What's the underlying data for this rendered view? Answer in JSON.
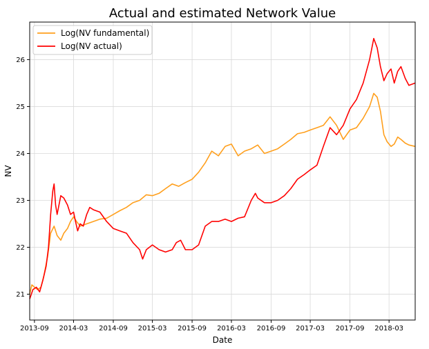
{
  "chart_data": {
    "type": "line",
    "title": "Actual and estimated Network Value",
    "xlabel": "Date",
    "ylabel": "NV",
    "x_ticks": [
      "2013-09",
      "2014-03",
      "2014-09",
      "2015-03",
      "2015-09",
      "2016-03",
      "2016-09",
      "2017-03",
      "2017-09",
      "2018-03"
    ],
    "y_ticks": [
      21,
      22,
      23,
      24,
      25,
      26
    ],
    "xlim": [
      "2013-08-10",
      "2018-06-30"
    ],
    "ylim": [
      20.45,
      26.8
    ],
    "grid": true,
    "legend_position": "top-left",
    "series": [
      {
        "name": "Log(NV fundamental)",
        "color": "#ff9f1c",
        "points": [
          [
            "2013-08-10",
            21.0
          ],
          [
            "2013-08-20",
            21.2
          ],
          [
            "2013-09-01",
            21.15
          ],
          [
            "2013-09-15",
            21.1
          ],
          [
            "2013-10-01",
            21.15
          ],
          [
            "2013-10-15",
            21.4
          ],
          [
            "2013-11-01",
            21.8
          ],
          [
            "2013-11-15",
            22.3
          ],
          [
            "2013-12-01",
            22.45
          ],
          [
            "2013-12-15",
            22.25
          ],
          [
            "2014-01-01",
            22.15
          ],
          [
            "2014-01-15",
            22.3
          ],
          [
            "2014-02-01",
            22.4
          ],
          [
            "2014-02-15",
            22.55
          ],
          [
            "2014-03-01",
            22.65
          ],
          [
            "2014-03-15",
            22.55
          ],
          [
            "2014-04-01",
            22.45
          ],
          [
            "2014-05-01",
            22.5
          ],
          [
            "2014-06-01",
            22.55
          ],
          [
            "2014-07-01",
            22.6
          ],
          [
            "2014-08-01",
            22.62
          ],
          [
            "2014-09-01",
            22.7
          ],
          [
            "2014-10-01",
            22.78
          ],
          [
            "2014-11-01",
            22.85
          ],
          [
            "2014-12-01",
            22.95
          ],
          [
            "2015-01-01",
            23.0
          ],
          [
            "2015-02-01",
            23.12
          ],
          [
            "2015-03-01",
            23.1
          ],
          [
            "2015-04-01",
            23.15
          ],
          [
            "2015-05-01",
            23.25
          ],
          [
            "2015-06-01",
            23.35
          ],
          [
            "2015-07-01",
            23.3
          ],
          [
            "2015-08-01",
            23.38
          ],
          [
            "2015-09-01",
            23.45
          ],
          [
            "2015-10-01",
            23.6
          ],
          [
            "2015-11-01",
            23.8
          ],
          [
            "2015-12-01",
            24.05
          ],
          [
            "2016-01-01",
            23.95
          ],
          [
            "2016-02-01",
            24.15
          ],
          [
            "2016-03-01",
            24.2
          ],
          [
            "2016-04-01",
            23.95
          ],
          [
            "2016-05-01",
            24.05
          ],
          [
            "2016-06-01",
            24.1
          ],
          [
            "2016-07-01",
            24.18
          ],
          [
            "2016-08-01",
            24.0
          ],
          [
            "2016-09-01",
            24.05
          ],
          [
            "2016-10-01",
            24.1
          ],
          [
            "2016-11-01",
            24.2
          ],
          [
            "2016-12-01",
            24.3
          ],
          [
            "2017-01-01",
            24.42
          ],
          [
            "2017-02-01",
            24.45
          ],
          [
            "2017-03-01",
            24.5
          ],
          [
            "2017-04-01",
            24.55
          ],
          [
            "2017-05-01",
            24.6
          ],
          [
            "2017-06-01",
            24.78
          ],
          [
            "2017-07-01",
            24.6
          ],
          [
            "2017-08-01",
            24.3
          ],
          [
            "2017-09-01",
            24.5
          ],
          [
            "2017-10-01",
            24.55
          ],
          [
            "2017-11-01",
            24.75
          ],
          [
            "2017-12-01",
            25.0
          ],
          [
            "2017-12-20",
            25.28
          ],
          [
            "2018-01-05",
            25.2
          ],
          [
            "2018-01-20",
            24.9
          ],
          [
            "2018-02-05",
            24.4
          ],
          [
            "2018-02-20",
            24.25
          ],
          [
            "2018-03-10",
            24.15
          ],
          [
            "2018-03-25",
            24.2
          ],
          [
            "2018-04-10",
            24.35
          ],
          [
            "2018-04-25",
            24.3
          ],
          [
            "2018-05-15",
            24.22
          ],
          [
            "2018-06-01",
            24.18
          ],
          [
            "2018-06-30",
            24.15
          ]
        ]
      },
      {
        "name": "Log(NV actual)",
        "color": "#ff0000",
        "points": [
          [
            "2013-08-10",
            20.9
          ],
          [
            "2013-08-25",
            21.1
          ],
          [
            "2013-09-10",
            21.15
          ],
          [
            "2013-09-25",
            21.05
          ],
          [
            "2013-10-10",
            21.3
          ],
          [
            "2013-10-25",
            21.6
          ],
          [
            "2013-11-05",
            22.0
          ],
          [
            "2013-11-15",
            22.7
          ],
          [
            "2013-11-25",
            23.2
          ],
          [
            "2013-12-01",
            23.35
          ],
          [
            "2013-12-08",
            22.9
          ],
          [
            "2013-12-15",
            22.7
          ],
          [
            "2014-01-01",
            23.1
          ],
          [
            "2014-01-15",
            23.05
          ],
          [
            "2014-02-01",
            22.9
          ],
          [
            "2014-02-15",
            22.7
          ],
          [
            "2014-03-01",
            22.75
          ],
          [
            "2014-03-10",
            22.55
          ],
          [
            "2014-03-20",
            22.35
          ],
          [
            "2014-04-01",
            22.5
          ],
          [
            "2014-04-15",
            22.45
          ],
          [
            "2014-05-01",
            22.7
          ],
          [
            "2014-05-15",
            22.85
          ],
          [
            "2014-06-01",
            22.8
          ],
          [
            "2014-07-01",
            22.75
          ],
          [
            "2014-08-01",
            22.55
          ],
          [
            "2014-09-01",
            22.4
          ],
          [
            "2014-10-01",
            22.35
          ],
          [
            "2014-11-01",
            22.3
          ],
          [
            "2014-12-01",
            22.1
          ],
          [
            "2015-01-01",
            21.95
          ],
          [
            "2015-01-15",
            21.75
          ],
          [
            "2015-02-01",
            21.95
          ],
          [
            "2015-03-01",
            22.05
          ],
          [
            "2015-04-01",
            21.95
          ],
          [
            "2015-05-01",
            21.9
          ],
          [
            "2015-06-01",
            21.95
          ],
          [
            "2015-06-20",
            22.1
          ],
          [
            "2015-07-10",
            22.15
          ],
          [
            "2015-08-01",
            21.95
          ],
          [
            "2015-09-01",
            21.95
          ],
          [
            "2015-10-01",
            22.05
          ],
          [
            "2015-11-01",
            22.45
          ],
          [
            "2015-12-01",
            22.55
          ],
          [
            "2016-01-01",
            22.55
          ],
          [
            "2016-02-01",
            22.6
          ],
          [
            "2016-03-01",
            22.55
          ],
          [
            "2016-04-01",
            22.62
          ],
          [
            "2016-05-01",
            22.65
          ],
          [
            "2016-06-01",
            23.0
          ],
          [
            "2016-06-20",
            23.15
          ],
          [
            "2016-07-01",
            23.05
          ],
          [
            "2016-08-01",
            22.95
          ],
          [
            "2016-09-01",
            22.95
          ],
          [
            "2016-10-01",
            23.0
          ],
          [
            "2016-11-01",
            23.1
          ],
          [
            "2016-12-01",
            23.25
          ],
          [
            "2017-01-01",
            23.45
          ],
          [
            "2017-02-01",
            23.55
          ],
          [
            "2017-03-01",
            23.65
          ],
          [
            "2017-04-01",
            23.75
          ],
          [
            "2017-05-01",
            24.15
          ],
          [
            "2017-06-01",
            24.55
          ],
          [
            "2017-07-01",
            24.4
          ],
          [
            "2017-08-01",
            24.6
          ],
          [
            "2017-09-01",
            24.95
          ],
          [
            "2017-10-01",
            25.15
          ],
          [
            "2017-11-01",
            25.5
          ],
          [
            "2017-12-01",
            26.0
          ],
          [
            "2017-12-20",
            26.45
          ],
          [
            "2018-01-05",
            26.25
          ],
          [
            "2018-01-20",
            25.85
          ],
          [
            "2018-02-05",
            25.55
          ],
          [
            "2018-02-20",
            25.7
          ],
          [
            "2018-03-10",
            25.8
          ],
          [
            "2018-03-25",
            25.5
          ],
          [
            "2018-04-10",
            25.75
          ],
          [
            "2018-04-25",
            25.85
          ],
          [
            "2018-05-15",
            25.6
          ],
          [
            "2018-06-01",
            25.45
          ],
          [
            "2018-06-30",
            25.5
          ]
        ]
      }
    ]
  }
}
